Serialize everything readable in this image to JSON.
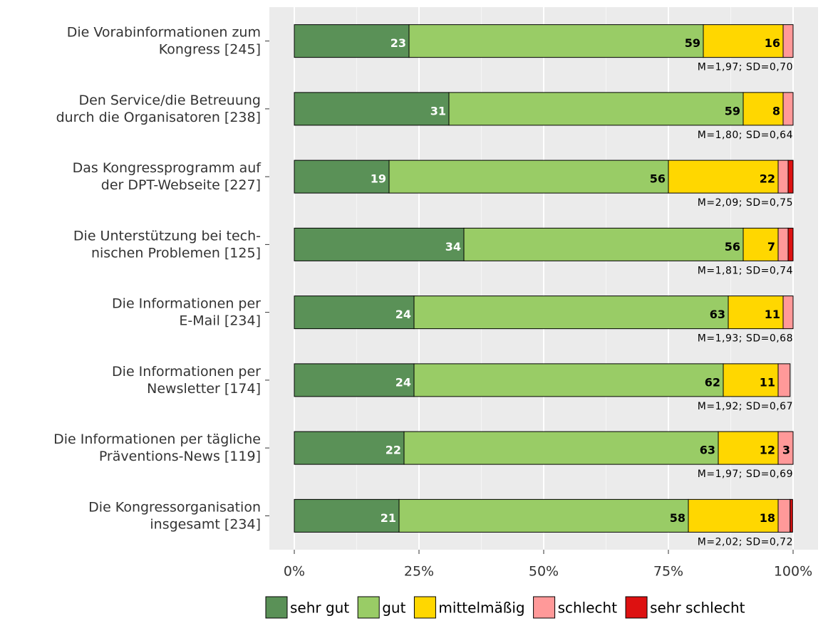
{
  "chart_data": {
    "type": "stacked_barh",
    "categories": [
      [
        "Die Vorabinformationen zum",
        "Kongress [245]"
      ],
      [
        "Den Service/die Betreuung",
        "durch die Organisatoren [238]"
      ],
      [
        "Das Kongressprogramm auf",
        "der DPT-Webseite [227]"
      ],
      [
        "Die Unterstützung bei tech-",
        "nischen Problemen [125]"
      ],
      [
        "Die Informationen per",
        "E-Mail [234]"
      ],
      [
        "Die Informationen per",
        "Newsletter [174]"
      ],
      [
        "Die Informationen per tägliche",
        "Präventions-News [119]"
      ],
      [
        "Die Kongressorganisation",
        "insgesamt [234]"
      ]
    ],
    "series": [
      {
        "name": "sehr gut",
        "color": "#5a9157",
        "label_color": "#ffffff",
        "values": [
          23,
          31,
          19,
          34,
          24,
          24,
          22,
          21
        ]
      },
      {
        "name": "gut",
        "color": "#99cc66",
        "label_color": "#000000",
        "values": [
          59,
          59,
          56,
          56,
          63,
          62,
          63,
          58
        ]
      },
      {
        "name": "mittelmäßig",
        "color": "#ffd700",
        "label_color": "#000000",
        "values": [
          16,
          8,
          22,
          7,
          11,
          11,
          12,
          18
        ]
      },
      {
        "name": "schlecht",
        "color": "#ff9999",
        "label_color": "#000000",
        "values": [
          2,
          2,
          2,
          2,
          2,
          2.4,
          3,
          2.4
        ]
      },
      {
        "name": "sehr schlecht",
        "color": "#dd1111",
        "label_color": "#000000",
        "values": [
          0,
          0,
          1,
          1,
          0,
          0,
          0,
          0.5
        ]
      }
    ],
    "annotations": [
      "M=1,97; SD=0,70",
      "M=1,80; SD=0,64",
      "M=2,09; SD=0,75",
      "M=1,81; SD=0,74",
      "M=1,93; SD=0,68",
      "M=1,92; SD=0,67",
      "M=1,97; SD=0,69",
      "M=2,02; SD=0,72"
    ],
    "xlim": [
      -5,
      105
    ],
    "xticks": [
      {
        "value": 0,
        "label": "0%"
      },
      {
        "value": 25,
        "label": "25%"
      },
      {
        "value": 50,
        "label": "50%"
      },
      {
        "value": 75,
        "label": "75%"
      },
      {
        "value": 100,
        "label": "100%"
      }
    ],
    "grid": true,
    "legend": "bottom"
  }
}
